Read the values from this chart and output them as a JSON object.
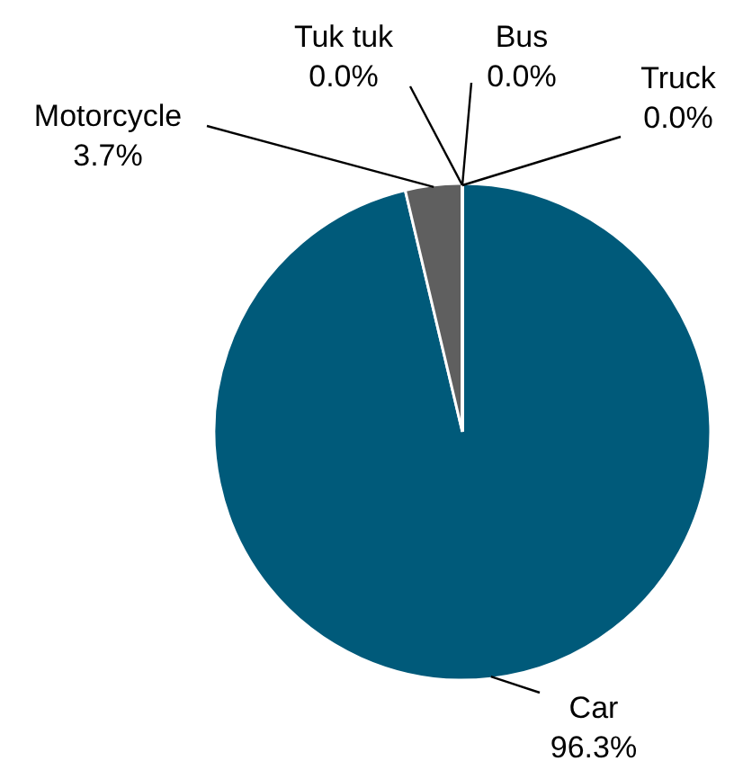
{
  "chart_data": {
    "type": "pie",
    "categories": [
      "Car",
      "Motorcycle",
      "Tuk tuk",
      "Bus",
      "Truck"
    ],
    "values": [
      96.3,
      3.7,
      0.0,
      0.0,
      0.0
    ],
    "colors": [
      "#005a7a",
      "#5f5f5f",
      "#a5a5a5",
      "#7f7f7f",
      "#bfbfbf"
    ],
    "value_labels": [
      "96.3%",
      "3.7%",
      "0.0%",
      "0.0%",
      "0.0%"
    ]
  }
}
